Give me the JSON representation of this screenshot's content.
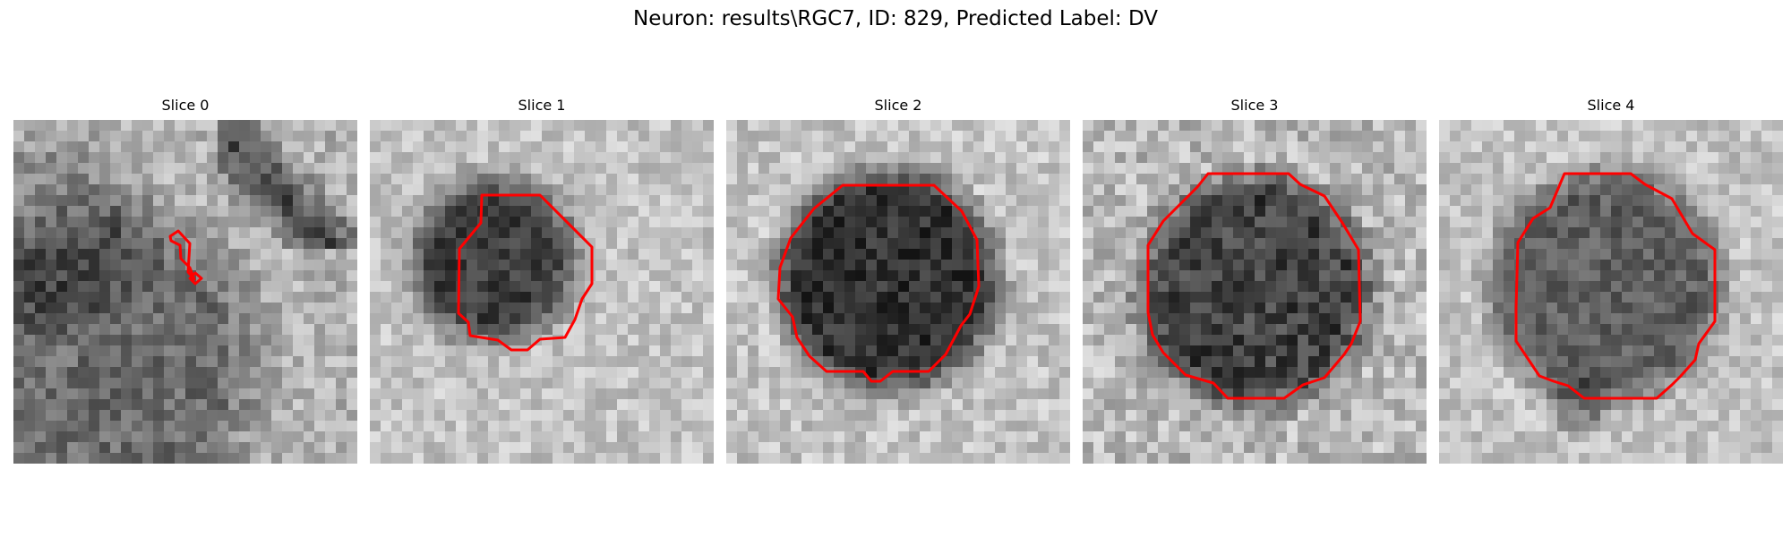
{
  "figure": {
    "title": "Neuron: results\\RGC7, ID: 829, Predicted Label: DV"
  },
  "colors": {
    "contour": "#ff0000",
    "background": "#ffffff"
  },
  "panels": [
    {
      "title": "Slice 0"
    },
    {
      "title": "Slice 1"
    },
    {
      "title": "Slice 2"
    },
    {
      "title": "Slice 3"
    },
    {
      "title": "Slice 4"
    }
  ]
}
